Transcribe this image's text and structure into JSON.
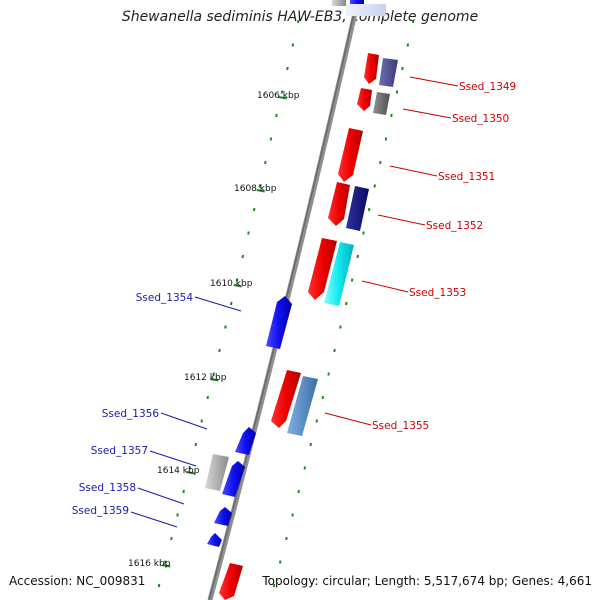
{
  "title": "Shewanella sediminis HAW-EB3, complete genome",
  "footer": {
    "accession": "Accession: NC_009831",
    "topology": "Topology: circular; Length: 5,517,674 bp; Genes: 4,661"
  },
  "kbp_labels": [
    "1606 kbp",
    "1608 kbp",
    "1610 kbp",
    "1612 kbp",
    "1614 kbp",
    "1616 kbp"
  ],
  "colors": {
    "forward_label": "#cc0000",
    "reverse_label": "#1a1aaa",
    "backbone": "#888888",
    "tick": "#1e8a1e"
  },
  "genes": [
    {
      "name": "Ssed_1349",
      "strand": "+"
    },
    {
      "name": "Ssed_1350",
      "strand": "+"
    },
    {
      "name": "Ssed_1351",
      "strand": "+"
    },
    {
      "name": "Ssed_1352",
      "strand": "+"
    },
    {
      "name": "Ssed_1353",
      "strand": "+"
    },
    {
      "name": "Ssed_1354",
      "strand": "-"
    },
    {
      "name": "Ssed_1355",
      "strand": "+"
    },
    {
      "name": "Ssed_1356",
      "strand": "-"
    },
    {
      "name": "Ssed_1357",
      "strand": "-"
    },
    {
      "name": "Ssed_1358",
      "strand": "-"
    },
    {
      "name": "Ssed_1359",
      "strand": "-"
    }
  ]
}
